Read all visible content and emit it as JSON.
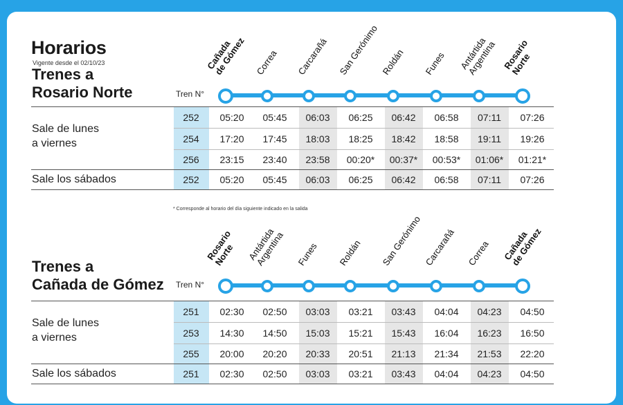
{
  "header": {
    "title": "Horarios",
    "subtitle": "Vigente desde el 02/10/23"
  },
  "colors": {
    "accent": "#27a3e6",
    "train_col": "#c6e6f5",
    "gray_col": "#e6e6e6"
  },
  "tren_label": "Tren N°",
  "footnote": "* Corresponde al horario del día siguiente indicado en la salida",
  "sections": [
    {
      "title_lines": [
        "Trenes a",
        "Rosario Norte"
      ],
      "stations": [
        {
          "lines": [
            "Cañada",
            "de Gómez"
          ],
          "bold": true
        },
        {
          "lines": [
            "Correa"
          ],
          "bold": false
        },
        {
          "lines": [
            "Carcarañá"
          ],
          "bold": false
        },
        {
          "lines": [
            "San Gerónimo"
          ],
          "bold": false
        },
        {
          "lines": [
            "Roldán"
          ],
          "bold": false
        },
        {
          "lines": [
            "Funes"
          ],
          "bold": false
        },
        {
          "lines": [
            "Antártida",
            "Argentina"
          ],
          "bold": false
        },
        {
          "lines": [
            "Rosario",
            "Norte"
          ],
          "bold": true
        }
      ],
      "weekday_label": [
        "Sale de lunes",
        "a viernes"
      ],
      "saturday_label": "Sale los sábados",
      "rows": [
        {
          "train": "252",
          "times": [
            "05:20",
            "05:45",
            "06:03",
            "06:25",
            "06:42",
            "06:58",
            "07:11",
            "07:26"
          ]
        },
        {
          "train": "254",
          "times": [
            "17:20",
            "17:45",
            "18:03",
            "18:25",
            "18:42",
            "18:58",
            "19:11",
            "19:26"
          ]
        },
        {
          "train": "256",
          "times": [
            "23:15",
            "23:40",
            "23:58",
            "00:20*",
            "00:37*",
            "00:53*",
            "01:06*",
            "01:21*"
          ]
        },
        {
          "train": "252",
          "times": [
            "05:20",
            "05:45",
            "06:03",
            "06:25",
            "06:42",
            "06:58",
            "07:11",
            "07:26"
          ]
        }
      ]
    },
    {
      "title_lines": [
        "Trenes a",
        "Cañada de Gómez"
      ],
      "stations": [
        {
          "lines": [
            "Rosario",
            "Norte"
          ],
          "bold": true
        },
        {
          "lines": [
            "Antártida",
            "Argentina"
          ],
          "bold": false
        },
        {
          "lines": [
            "Funes"
          ],
          "bold": false
        },
        {
          "lines": [
            "Roldán"
          ],
          "bold": false
        },
        {
          "lines": [
            "San Gerónimo"
          ],
          "bold": false
        },
        {
          "lines": [
            "Carcarañá"
          ],
          "bold": false
        },
        {
          "lines": [
            "Correa"
          ],
          "bold": false
        },
        {
          "lines": [
            "Cañada",
            "de Gómez"
          ],
          "bold": true
        }
      ],
      "weekday_label": [
        "Sale de lunes",
        "a viernes"
      ],
      "saturday_label": "Sale los sábados",
      "rows": [
        {
          "train": "251",
          "times": [
            "02:30",
            "02:50",
            "03:03",
            "03:21",
            "03:43",
            "04:04",
            "04:23",
            "04:50"
          ]
        },
        {
          "train": "253",
          "times": [
            "14:30",
            "14:50",
            "15:03",
            "15:21",
            "15:43",
            "16:04",
            "16:23",
            "16:50"
          ]
        },
        {
          "train": "255",
          "times": [
            "20:00",
            "20:20",
            "20:33",
            "20:51",
            "21:13",
            "21:34",
            "21:53",
            "22:20"
          ]
        },
        {
          "train": "251",
          "times": [
            "02:30",
            "02:50",
            "03:03",
            "03:21",
            "03:43",
            "04:04",
            "04:23",
            "04:50"
          ]
        }
      ]
    }
  ]
}
